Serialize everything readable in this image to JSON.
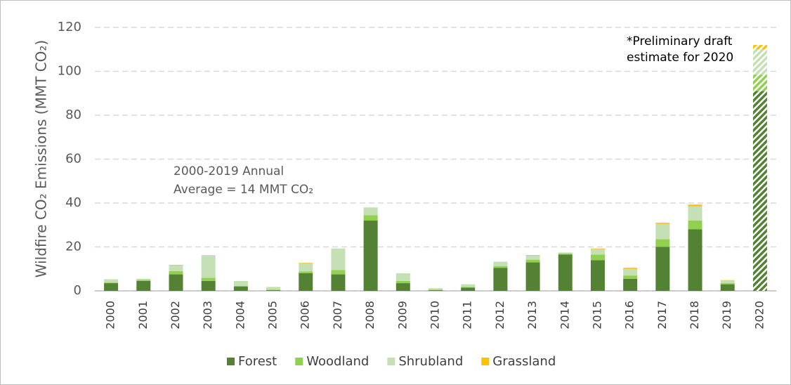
{
  "chart_data": {
    "type": "bar",
    "stacked": true,
    "y_label": "Wildfire CO₂ Emissions (MMT CO₂)",
    "annotations": [
      [
        "2000-2019 Annual",
        "Average = 14 MMT CO₂"
      ],
      [
        "*Preliminary draft",
        "estimate for 2020"
      ]
    ],
    "categories": [
      "2000",
      "2001",
      "2002",
      "2003",
      "2004",
      "2005",
      "2006",
      "2007",
      "2008",
      "2009",
      "2010",
      "2011",
      "2012",
      "2013",
      "2014",
      "2015",
      "2016",
      "2017",
      "2018",
      "2019",
      "2020"
    ],
    "hatched_categories": [
      "2020"
    ],
    "series": [
      {
        "name": "Forest",
        "color": "#548235",
        "values": [
          3.5,
          4.5,
          7.5,
          4.5,
          2,
          0.3,
          8,
          7.5,
          32,
          3.5,
          0.3,
          1.5,
          10.5,
          13,
          16.5,
          14,
          5.5,
          20,
          28,
          3,
          91
        ]
      },
      {
        "name": "Woodland",
        "color": "#92d050",
        "values": [
          0.3,
          0.5,
          1.5,
          1.5,
          0.3,
          0.2,
          0.8,
          2,
          2.5,
          1,
          0.2,
          0.3,
          0.8,
          1.2,
          0.5,
          2.5,
          1.5,
          3.5,
          4,
          0.5,
          7.5
        ]
      },
      {
        "name": "Shrubland",
        "color": "#c5e0b4",
        "values": [
          1.5,
          0.5,
          2.5,
          10,
          2.2,
          1.3,
          3.8,
          9.8,
          3.5,
          3.5,
          0.7,
          1.2,
          2,
          1.8,
          0.5,
          2.5,
          3,
          7,
          6.5,
          1.2,
          11.5
        ]
      },
      {
        "name": "Grassland",
        "color": "#ffc000",
        "values": [
          0,
          0,
          0.3,
          0.2,
          0,
          0,
          0.2,
          0,
          0,
          0,
          0,
          0,
          0,
          0.3,
          0,
          0.3,
          0.5,
          0.5,
          0.8,
          0.2,
          2
        ]
      }
    ],
    "ylim": [
      0,
      120
    ],
    "yticks": [
      0,
      20,
      40,
      60,
      80,
      100,
      120
    ],
    "grid": true,
    "legend": "bottom"
  }
}
